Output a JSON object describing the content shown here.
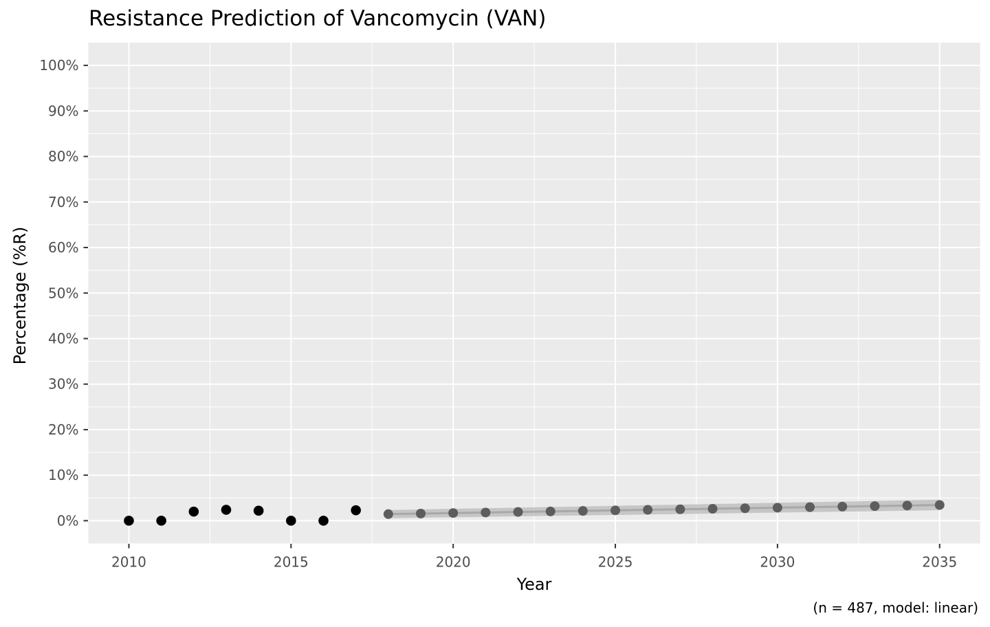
{
  "chart_data": {
    "type": "scatter",
    "title": "Resistance Prediction of Vancomycin (VAN)",
    "xlabel": "Year",
    "ylabel": "Percentage (%R)",
    "caption": "(n = 487, model: linear)",
    "xlim": [
      2008.75,
      2036.25
    ],
    "ylim": [
      -5,
      105
    ],
    "x_ticks": [
      2010,
      2015,
      2020,
      2025,
      2030,
      2035
    ],
    "y_ticks": [
      0,
      10,
      20,
      30,
      40,
      50,
      60,
      70,
      80,
      90,
      100
    ],
    "y_tick_suffix": "%",
    "grid": "major-and-minor",
    "legend": "none",
    "series": [
      {
        "name": "observed",
        "style": "points",
        "point_color": "#000000",
        "point_radius": 7.3,
        "x": [
          2010,
          2011,
          2012,
          2013,
          2014,
          2015,
          2016,
          2017
        ],
        "y": [
          0.0,
          0.0,
          2.0,
          2.4,
          2.2,
          0.0,
          0.0,
          2.3
        ]
      },
      {
        "name": "predicted",
        "style": "points-line-ribbon",
        "point_color": "#5d5d5d",
        "line_color": "#a8a8a8",
        "ribbon_color": "#c6c6c6",
        "point_radius": 7,
        "x": [
          2018,
          2019,
          2020,
          2021,
          2022,
          2023,
          2024,
          2025,
          2026,
          2027,
          2028,
          2029,
          2030,
          2031,
          2032,
          2033,
          2034,
          2035
        ],
        "y": [
          1.45,
          1.57,
          1.69,
          1.8,
          1.92,
          2.04,
          2.15,
          2.27,
          2.39,
          2.51,
          2.62,
          2.74,
          2.86,
          2.98,
          3.09,
          3.21,
          3.33,
          3.45
        ],
        "lower": [
          0.55,
          0.66,
          0.76,
          0.86,
          0.96,
          1.07,
          1.16,
          1.27,
          1.37,
          1.48,
          1.57,
          1.68,
          1.78,
          1.89,
          1.98,
          2.09,
          2.19,
          2.3
        ],
        "upper": [
          2.35,
          2.48,
          2.62,
          2.74,
          2.88,
          3.01,
          3.14,
          3.27,
          3.41,
          3.54,
          3.67,
          3.8,
          3.94,
          4.07,
          4.2,
          4.33,
          4.47,
          4.6
        ]
      }
    ],
    "colors": {
      "background": "#ffffff",
      "panel_bg": "#ebebeb",
      "grid": "#ffffff",
      "tick": "#333333",
      "tick_label": "#4d4d4d",
      "text": "#000000"
    }
  }
}
